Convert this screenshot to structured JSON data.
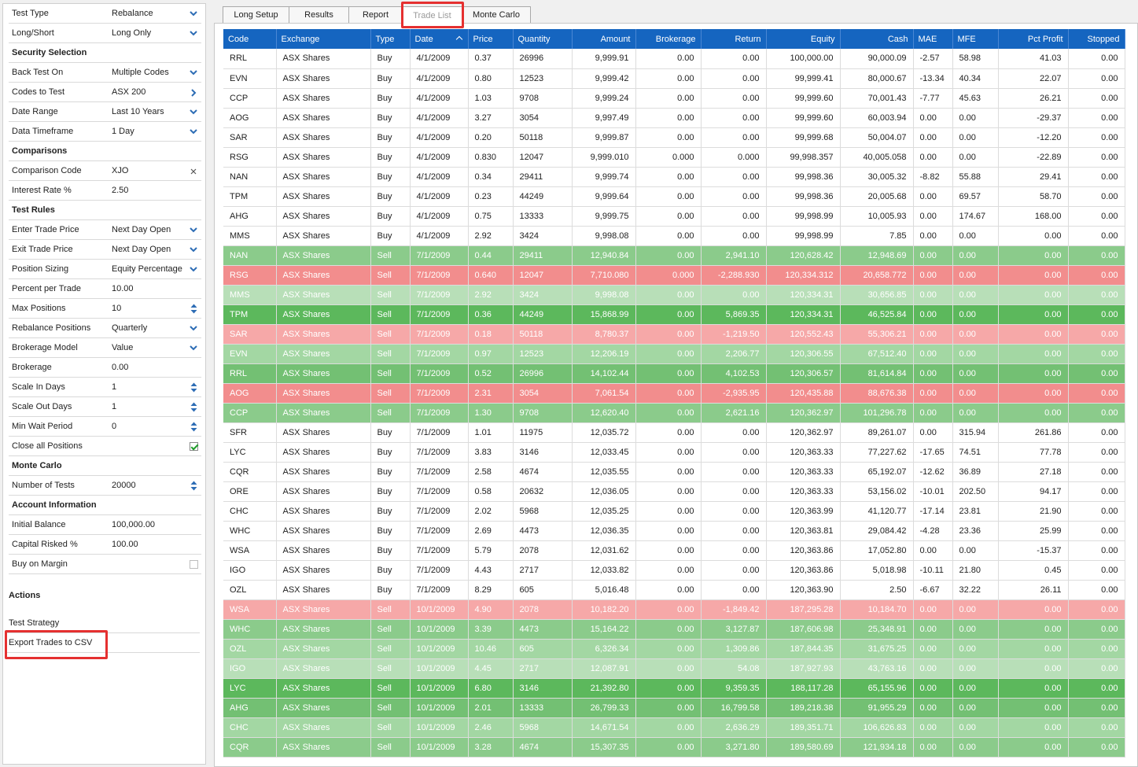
{
  "panel": {
    "rows": [
      {
        "type": "prop",
        "label": "Test Type",
        "value": "Rebalance",
        "control": "chevron-down"
      },
      {
        "type": "prop",
        "label": "Long/Short",
        "value": "Long Only",
        "control": "chevron-down"
      },
      {
        "type": "section",
        "label": "Security Selection"
      },
      {
        "type": "prop",
        "label": "Back Test On",
        "value": "Multiple Codes",
        "control": "chevron-down"
      },
      {
        "type": "prop",
        "label": "Codes to Test",
        "value": "ASX 200",
        "control": "chevron-right"
      },
      {
        "type": "prop",
        "label": "Date Range",
        "value": "Last 10 Years",
        "control": "chevron-down"
      },
      {
        "type": "prop",
        "label": "Data Timeframe",
        "value": "1 Day",
        "control": "chevron-down"
      },
      {
        "type": "section",
        "label": "Comparisons"
      },
      {
        "type": "prop",
        "label": "Comparison Code",
        "value": "XJO",
        "control": "close"
      },
      {
        "type": "prop",
        "label": "Interest Rate %",
        "value": "2.50",
        "control": ""
      },
      {
        "type": "section",
        "label": "Test Rules"
      },
      {
        "type": "prop",
        "label": "Enter Trade Price",
        "value": "Next Day Open",
        "control": "chevron-down"
      },
      {
        "type": "prop",
        "label": "Exit Trade Price",
        "value": "Next Day Open",
        "control": "chevron-down"
      },
      {
        "type": "prop",
        "label": "Position Sizing",
        "value": "Equity Percentage",
        "control": "chevron-down"
      },
      {
        "type": "prop",
        "label": "Percent per Trade",
        "value": "10.00",
        "control": ""
      },
      {
        "type": "prop",
        "label": "Max Positions",
        "value": "10",
        "control": "spinner"
      },
      {
        "type": "prop",
        "label": "Rebalance Positions",
        "value": "Quarterly",
        "control": "chevron-down"
      },
      {
        "type": "prop",
        "label": "Brokerage Model",
        "value": "Value",
        "control": "chevron-down"
      },
      {
        "type": "prop",
        "label": "Brokerage",
        "value": "0.00",
        "control": ""
      },
      {
        "type": "prop",
        "label": "Scale In Days",
        "value": "1",
        "control": "spinner"
      },
      {
        "type": "prop",
        "label": "Scale Out Days",
        "value": "1",
        "control": "spinner"
      },
      {
        "type": "prop",
        "label": "Min Wait Period",
        "value": "0",
        "control": "spinner"
      },
      {
        "type": "prop",
        "label": "Close all Positions",
        "value": "",
        "control": "checkbox-checked"
      },
      {
        "type": "section",
        "label": "Monte Carlo"
      },
      {
        "type": "prop",
        "label": "Number of Tests",
        "value": "20000",
        "control": "spinner"
      },
      {
        "type": "section",
        "label": "Account Information"
      },
      {
        "type": "prop",
        "label": "Initial Balance",
        "value": "100,000.00",
        "control": ""
      },
      {
        "type": "prop",
        "label": "Capital Risked %",
        "value": "100.00",
        "control": ""
      },
      {
        "type": "prop",
        "label": "Buy on Margin",
        "value": "",
        "control": "checkbox-unchecked"
      }
    ],
    "actions_title": "Actions",
    "actions": [
      "Test Strategy",
      "Export Trades to CSV"
    ]
  },
  "tabs": [
    {
      "label": "Long Setup",
      "active": false
    },
    {
      "label": "Results",
      "active": false
    },
    {
      "label": "Report",
      "active": false
    },
    {
      "label": "Trade List",
      "active": true
    },
    {
      "label": "Monte Carlo",
      "active": false
    }
  ],
  "table": {
    "columns": [
      "Code",
      "Exchange",
      "Type",
      "Date",
      "Price",
      "Quantity",
      "Amount",
      "Brokerage",
      "Return",
      "Equity",
      "Cash",
      "MAE",
      "MFE",
      "Pct Profit",
      "Stopped"
    ],
    "sorted_column": "Date",
    "colors": {
      "header": "#1565c0",
      "profit": "#5cb85c",
      "loss": "#f28d8d"
    },
    "rows": [
      [
        "RRL",
        "ASX Shares",
        "Buy",
        "4/1/2009",
        "0.37",
        "26996",
        "9,999.91",
        "0.00",
        "0.00",
        "100,000.00",
        "90,000.09",
        "-2.57",
        "58.98",
        "41.03",
        "0.00"
      ],
      [
        "EVN",
        "ASX Shares",
        "Buy",
        "4/1/2009",
        "0.80",
        "12523",
        "9,999.42",
        "0.00",
        "0.00",
        "99,999.41",
        "80,000.67",
        "-13.34",
        "40.34",
        "22.07",
        "0.00"
      ],
      [
        "CCP",
        "ASX Shares",
        "Buy",
        "4/1/2009",
        "1.03",
        "9708",
        "9,999.24",
        "0.00",
        "0.00",
        "99,999.60",
        "70,001.43",
        "-7.77",
        "45.63",
        "26.21",
        "0.00"
      ],
      [
        "AOG",
        "ASX Shares",
        "Buy",
        "4/1/2009",
        "3.27",
        "3054",
        "9,997.49",
        "0.00",
        "0.00",
        "99,999.60",
        "60,003.94",
        "0.00",
        "0.00",
        "-29.37",
        "0.00"
      ],
      [
        "SAR",
        "ASX Shares",
        "Buy",
        "4/1/2009",
        "0.20",
        "50118",
        "9,999.87",
        "0.00",
        "0.00",
        "99,999.68",
        "50,004.07",
        "0.00",
        "0.00",
        "-12.20",
        "0.00"
      ],
      [
        "RSG",
        "ASX Shares",
        "Buy",
        "4/1/2009",
        "0.830",
        "12047",
        "9,999.010",
        "0.000",
        "0.000",
        "99,998.357",
        "40,005.058",
        "0.00",
        "0.00",
        "-22.89",
        "0.00"
      ],
      [
        "NAN",
        "ASX Shares",
        "Buy",
        "4/1/2009",
        "0.34",
        "29411",
        "9,999.74",
        "0.00",
        "0.00",
        "99,998.36",
        "30,005.32",
        "-8.82",
        "55.88",
        "29.41",
        "0.00"
      ],
      [
        "TPM",
        "ASX Shares",
        "Buy",
        "4/1/2009",
        "0.23",
        "44249",
        "9,999.64",
        "0.00",
        "0.00",
        "99,998.36",
        "20,005.68",
        "0.00",
        "69.57",
        "58.70",
        "0.00"
      ],
      [
        "AHG",
        "ASX Shares",
        "Buy",
        "4/1/2009",
        "0.75",
        "13333",
        "9,999.75",
        "0.00",
        "0.00",
        "99,998.99",
        "10,005.93",
        "0.00",
        "174.67",
        "168.00",
        "0.00"
      ],
      [
        "MMS",
        "ASX Shares",
        "Buy",
        "4/1/2009",
        "2.92",
        "3424",
        "9,998.08",
        "0.00",
        "0.00",
        "99,998.99",
        "7.85",
        "0.00",
        "0.00",
        "0.00",
        "0.00"
      ],
      [
        "NAN",
        "ASX Shares",
        "Sell",
        "7/1/2009",
        "0.44",
        "29411",
        "12,940.84",
        "0.00",
        "2,941.10",
        "120,628.42",
        "12,948.69",
        "0.00",
        "0.00",
        "0.00",
        "0.00",
        "g2"
      ],
      [
        "RSG",
        "ASX Shares",
        "Sell",
        "7/1/2009",
        "0.640",
        "12047",
        "7,710.080",
        "0.000",
        "-2,288.930",
        "120,334.312",
        "20,658.772",
        "0.00",
        "0.00",
        "0.00",
        "0.00",
        "r3"
      ],
      [
        "MMS",
        "ASX Shares",
        "Sell",
        "7/1/2009",
        "2.92",
        "3424",
        "9,998.08",
        "0.00",
        "0.00",
        "120,334.31",
        "30,656.85",
        "0.00",
        "0.00",
        "0.00",
        "0.00",
        "g0"
      ],
      [
        "TPM",
        "ASX Shares",
        "Sell",
        "7/1/2009",
        "0.36",
        "44249",
        "15,868.99",
        "0.00",
        "5,869.35",
        "120,334.31",
        "46,525.84",
        "0.00",
        "0.00",
        "0.00",
        "0.00",
        "g4"
      ],
      [
        "SAR",
        "ASX Shares",
        "Sell",
        "7/1/2009",
        "0.18",
        "50118",
        "8,780.37",
        "0.00",
        "-1,219.50",
        "120,552.43",
        "55,306.21",
        "0.00",
        "0.00",
        "0.00",
        "0.00",
        "r1"
      ],
      [
        "EVN",
        "ASX Shares",
        "Sell",
        "7/1/2009",
        "0.97",
        "12523",
        "12,206.19",
        "0.00",
        "2,206.77",
        "120,306.55",
        "67,512.40",
        "0.00",
        "0.00",
        "0.00",
        "0.00",
        "g1"
      ],
      [
        "RRL",
        "ASX Shares",
        "Sell",
        "7/1/2009",
        "0.52",
        "26996",
        "14,102.44",
        "0.00",
        "4,102.53",
        "120,306.57",
        "81,614.84",
        "0.00",
        "0.00",
        "0.00",
        "0.00",
        "g3"
      ],
      [
        "AOG",
        "ASX Shares",
        "Sell",
        "7/1/2009",
        "2.31",
        "3054",
        "7,061.54",
        "0.00",
        "-2,935.95",
        "120,435.88",
        "88,676.38",
        "0.00",
        "0.00",
        "0.00",
        "0.00",
        "r3"
      ],
      [
        "CCP",
        "ASX Shares",
        "Sell",
        "7/1/2009",
        "1.30",
        "9708",
        "12,620.40",
        "0.00",
        "2,621.16",
        "120,362.97",
        "101,296.78",
        "0.00",
        "0.00",
        "0.00",
        "0.00",
        "g2"
      ],
      [
        "SFR",
        "ASX Shares",
        "Buy",
        "7/1/2009",
        "1.01",
        "11975",
        "12,035.72",
        "0.00",
        "0.00",
        "120,362.97",
        "89,261.07",
        "0.00",
        "315.94",
        "261.86",
        "0.00"
      ],
      [
        "LYC",
        "ASX Shares",
        "Buy",
        "7/1/2009",
        "3.83",
        "3146",
        "12,033.45",
        "0.00",
        "0.00",
        "120,363.33",
        "77,227.62",
        "-17.65",
        "74.51",
        "77.78",
        "0.00"
      ],
      [
        "CQR",
        "ASX Shares",
        "Buy",
        "7/1/2009",
        "2.58",
        "4674",
        "12,035.55",
        "0.00",
        "0.00",
        "120,363.33",
        "65,192.07",
        "-12.62",
        "36.89",
        "27.18",
        "0.00"
      ],
      [
        "ORE",
        "ASX Shares",
        "Buy",
        "7/1/2009",
        "0.58",
        "20632",
        "12,036.05",
        "0.00",
        "0.00",
        "120,363.33",
        "53,156.02",
        "-10.01",
        "202.50",
        "94.17",
        "0.00"
      ],
      [
        "CHC",
        "ASX Shares",
        "Buy",
        "7/1/2009",
        "2.02",
        "5968",
        "12,035.25",
        "0.00",
        "0.00",
        "120,363.99",
        "41,120.77",
        "-17.14",
        "23.81",
        "21.90",
        "0.00"
      ],
      [
        "WHC",
        "ASX Shares",
        "Buy",
        "7/1/2009",
        "2.69",
        "4473",
        "12,036.35",
        "0.00",
        "0.00",
        "120,363.81",
        "29,084.42",
        "-4.28",
        "23.36",
        "25.99",
        "0.00"
      ],
      [
        "WSA",
        "ASX Shares",
        "Buy",
        "7/1/2009",
        "5.79",
        "2078",
        "12,031.62",
        "0.00",
        "0.00",
        "120,363.86",
        "17,052.80",
        "0.00",
        "0.00",
        "-15.37",
        "0.00"
      ],
      [
        "IGO",
        "ASX Shares",
        "Buy",
        "7/1/2009",
        "4.43",
        "2717",
        "12,033.82",
        "0.00",
        "0.00",
        "120,363.86",
        "5,018.98",
        "-10.11",
        "21.80",
        "0.45",
        "0.00"
      ],
      [
        "OZL",
        "ASX Shares",
        "Buy",
        "7/1/2009",
        "8.29",
        "605",
        "5,016.48",
        "0.00",
        "0.00",
        "120,363.90",
        "2.50",
        "-6.67",
        "32.22",
        "26.11",
        "0.00"
      ],
      [
        "WSA",
        "ASX Shares",
        "Sell",
        "10/1/2009",
        "4.90",
        "2078",
        "10,182.20",
        "0.00",
        "-1,849.42",
        "187,295.28",
        "10,184.70",
        "0.00",
        "0.00",
        "0.00",
        "0.00",
        "r1"
      ],
      [
        "WHC",
        "ASX Shares",
        "Sell",
        "10/1/2009",
        "3.39",
        "4473",
        "15,164.22",
        "0.00",
        "3,127.87",
        "187,606.98",
        "25,348.91",
        "0.00",
        "0.00",
        "0.00",
        "0.00",
        "g2"
      ],
      [
        "OZL",
        "ASX Shares",
        "Sell",
        "10/1/2009",
        "10.46",
        "605",
        "6,326.34",
        "0.00",
        "1,309.86",
        "187,844.35",
        "31,675.25",
        "0.00",
        "0.00",
        "0.00",
        "0.00",
        "g1"
      ],
      [
        "IGO",
        "ASX Shares",
        "Sell",
        "10/1/2009",
        "4.45",
        "2717",
        "12,087.91",
        "0.00",
        "54.08",
        "187,927.93",
        "43,763.16",
        "0.00",
        "0.00",
        "0.00",
        "0.00",
        "g0"
      ],
      [
        "LYC",
        "ASX Shares",
        "Sell",
        "10/1/2009",
        "6.80",
        "3146",
        "21,392.80",
        "0.00",
        "9,359.35",
        "188,117.28",
        "65,155.96",
        "0.00",
        "0.00",
        "0.00",
        "0.00",
        "g4"
      ],
      [
        "AHG",
        "ASX Shares",
        "Sell",
        "10/1/2009",
        "2.01",
        "13333",
        "26,799.33",
        "0.00",
        "16,799.58",
        "189,218.38",
        "91,955.29",
        "0.00",
        "0.00",
        "0.00",
        "0.00",
        "g3"
      ],
      [
        "CHC",
        "ASX Shares",
        "Sell",
        "10/1/2009",
        "2.46",
        "5968",
        "14,671.54",
        "0.00",
        "2,636.29",
        "189,351.71",
        "106,626.83",
        "0.00",
        "0.00",
        "0.00",
        "0.00",
        "g1"
      ],
      [
        "CQR",
        "ASX Shares",
        "Sell",
        "10/1/2009",
        "3.28",
        "4674",
        "15,307.35",
        "0.00",
        "3,271.80",
        "189,580.69",
        "121,934.18",
        "0.00",
        "0.00",
        "0.00",
        "0.00",
        "g2"
      ]
    ]
  }
}
